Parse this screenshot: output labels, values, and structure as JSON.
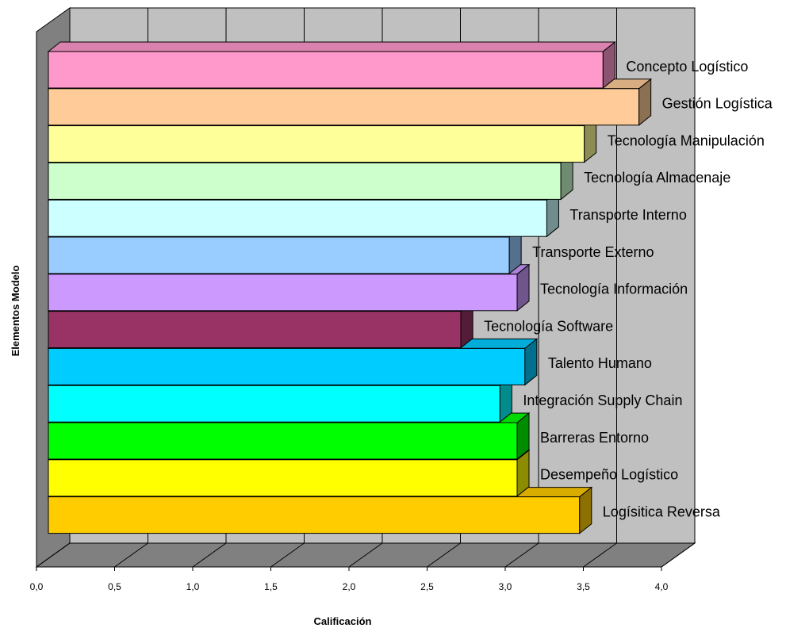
{
  "chart_data": {
    "type": "bar",
    "orientation": "horizontal",
    "three_d": true,
    "title": "",
    "xlabel": "Calificación",
    "ylabel": "Elementos Modelo",
    "xlim": [
      0,
      4
    ],
    "ticks": [
      "0,0",
      "0,5",
      "1,0",
      "1,5",
      "2,0",
      "2,5",
      "3,0",
      "3,5",
      "4,0"
    ],
    "grid": true,
    "legend": "none",
    "categories": [
      "Concepto Logístico",
      "Gestión Logística",
      "Tecnología Manipulación",
      "Tecnología Almacenaje",
      "Transporte Interno",
      "Transporte Externo",
      "Tecnología Información",
      "Tecnología Software",
      "Talento Humano",
      "Integración Supply Chain",
      "Barreras Entorno",
      "Desempeño Logístico",
      "Logísitica Reversa"
    ],
    "values": [
      3.55,
      3.78,
      3.43,
      3.28,
      3.19,
      2.95,
      3.0,
      2.64,
      3.05,
      2.89,
      3.0,
      3.0,
      3.4
    ],
    "colors": [
      "#ff99cc",
      "#ffcc99",
      "#ffff99",
      "#ccffcc",
      "#ccffff",
      "#99ccff",
      "#cc99ff",
      "#993366",
      "#00ccff",
      "#00ffff",
      "#00ff00",
      "#ffff00",
      "#ffcc00"
    ]
  }
}
